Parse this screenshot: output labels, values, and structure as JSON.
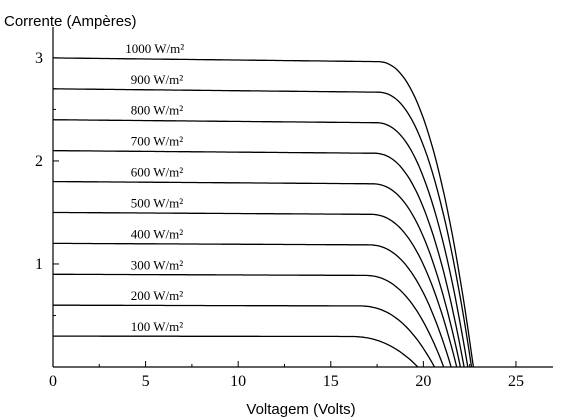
{
  "chart_data": {
    "type": "line",
    "title": "",
    "xlabel": "Voltagem (Volts)",
    "ylabel": "Corrente (Ampères)",
    "xlim": [
      0,
      27
    ],
    "ylim": [
      0,
      3.3
    ],
    "xticks": [
      0,
      5,
      10,
      15,
      20,
      25
    ],
    "yticks": [
      1,
      2,
      3
    ],
    "grid": false,
    "color": "#000000",
    "series": [
      {
        "name": "1000 W/m²",
        "isc": 3.0,
        "voc": 22.7,
        "knee_v": 17.5
      },
      {
        "name": "900 W/m²",
        "isc": 2.7,
        "voc": 22.6,
        "knee_v": 17.5
      },
      {
        "name": "800 W/m²",
        "isc": 2.4,
        "voc": 22.4,
        "knee_v": 17.4
      },
      {
        "name": "700 W/m²",
        "isc": 2.1,
        "voc": 22.2,
        "knee_v": 17.3
      },
      {
        "name": "600 W/m²",
        "isc": 1.8,
        "voc": 22.0,
        "knee_v": 17.2
      },
      {
        "name": "500 W/m²",
        "isc": 1.5,
        "voc": 21.8,
        "knee_v": 17.1
      },
      {
        "name": "400 W/m²",
        "isc": 1.2,
        "voc": 21.5,
        "knee_v": 17.0
      },
      {
        "name": "300 W/m²",
        "isc": 0.9,
        "voc": 21.1,
        "knee_v": 16.8
      },
      {
        "name": "200 W/m²",
        "isc": 0.6,
        "voc": 20.6,
        "knee_v": 16.5
      },
      {
        "name": "100 W/m²",
        "isc": 0.3,
        "voc": 19.7,
        "knee_v": 16.0
      }
    ]
  }
}
